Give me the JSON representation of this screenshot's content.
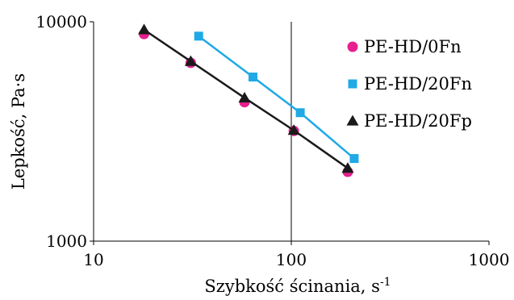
{
  "chart_data": {
    "type": "scatter",
    "xlabel": "Szybkość ścinania, s",
    "xlabel_superscript": "-1",
    "ylabel": "Lepkość, Pa·s",
    "xscale": "log",
    "yscale": "log",
    "xlim": [
      10,
      1000
    ],
    "ylim": [
      1000,
      10000
    ],
    "xticks": [
      10,
      100,
      1000
    ],
    "xtick_labels": [
      "10",
      "100",
      "1000"
    ],
    "yticks": [
      1000,
      10000
    ],
    "ytick_labels": [
      "1000",
      "10000"
    ],
    "grid": "vertical-major",
    "legend_position": "top-right",
    "series": [
      {
        "name": "PE-HD/0Fn",
        "marker": "circle",
        "color": "#e6208f",
        "trendline": false,
        "x": [
          18,
          31,
          58,
          103,
          193
        ],
        "y": [
          8800,
          6500,
          4300,
          3180,
          2070
        ]
      },
      {
        "name": "PE-HD/20Fn",
        "marker": "square",
        "color": "#1fa9e6",
        "line_color": "#1fa9e6",
        "trendline": true,
        "x": [
          34,
          64,
          111,
          208
        ],
        "y": [
          8600,
          5600,
          3850,
          2380
        ]
      },
      {
        "name": "PE-HD/20Fp",
        "marker": "triangle",
        "color": "#1a1a1a",
        "line_color": "#1a1a1a",
        "trendline": true,
        "x": [
          18,
          31,
          58,
          103,
          193
        ],
        "y": [
          9200,
          6600,
          4500,
          3200,
          2150
        ]
      }
    ]
  }
}
